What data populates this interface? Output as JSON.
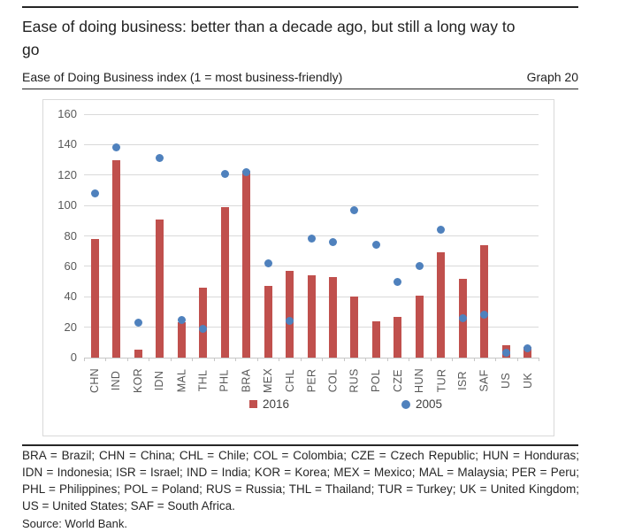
{
  "header": {
    "title": "Ease of doing business: better than a decade ago, but still a long way to go",
    "subtitle": "Ease of Doing Business index (1 = most business-friendly)",
    "graph_label": "Graph 20"
  },
  "chart_data": {
    "type": "bar",
    "title": "Ease of Doing Business index (1 = most business-friendly)",
    "categories": [
      "CHN",
      "IND",
      "KOR",
      "IDN",
      "MAL",
      "THL",
      "PHL",
      "BRA",
      "MEX",
      "CHL",
      "PER",
      "COL",
      "RUS",
      "POL",
      "CZE",
      "HUN",
      "TUR",
      "ISR",
      "SAF",
      "US",
      "UK"
    ],
    "series": [
      {
        "name": "2016",
        "style": "bar",
        "color": "#c0504d",
        "values": [
          78,
          130,
          5,
          91,
          23,
          46,
          99,
          123,
          47,
          57,
          54,
          53,
          40,
          24,
          27,
          41,
          69,
          52,
          74,
          8,
          7
        ]
      },
      {
        "name": "2005",
        "style": "scatter",
        "color": "#4f81bd",
        "values": [
          108,
          138,
          23,
          131,
          25,
          19,
          121,
          122,
          62,
          24,
          78,
          76,
          97,
          74,
          50,
          60,
          84,
          26,
          28,
          3,
          6
        ]
      }
    ],
    "ylim": [
      0,
      160
    ],
    "ytick_step": 20,
    "grid": true,
    "legend_position": "bottom-inside"
  },
  "colors": {
    "bar_2016": "#c0504d",
    "dot_2005": "#4f81bd",
    "gridline": "#d9d9d9",
    "axis_text": "#595959"
  },
  "footnote": "BRA = Brazil; CHN = China; CHL = Chile; COL = Colombia; CZE = Czech Republic; HUN = Honduras; IDN = Indonesia; ISR = Israel; IND = India; KOR = Korea; MEX = Mexico; MAL = Malaysia; PER = Peru; PHL = Philippines; POL = Poland; RUS = Russia; THL = Thailand; TUR = Turkey; UK = United Kingdom; US = United States; SAF = South Africa.",
  "source": "Source: World Bank."
}
